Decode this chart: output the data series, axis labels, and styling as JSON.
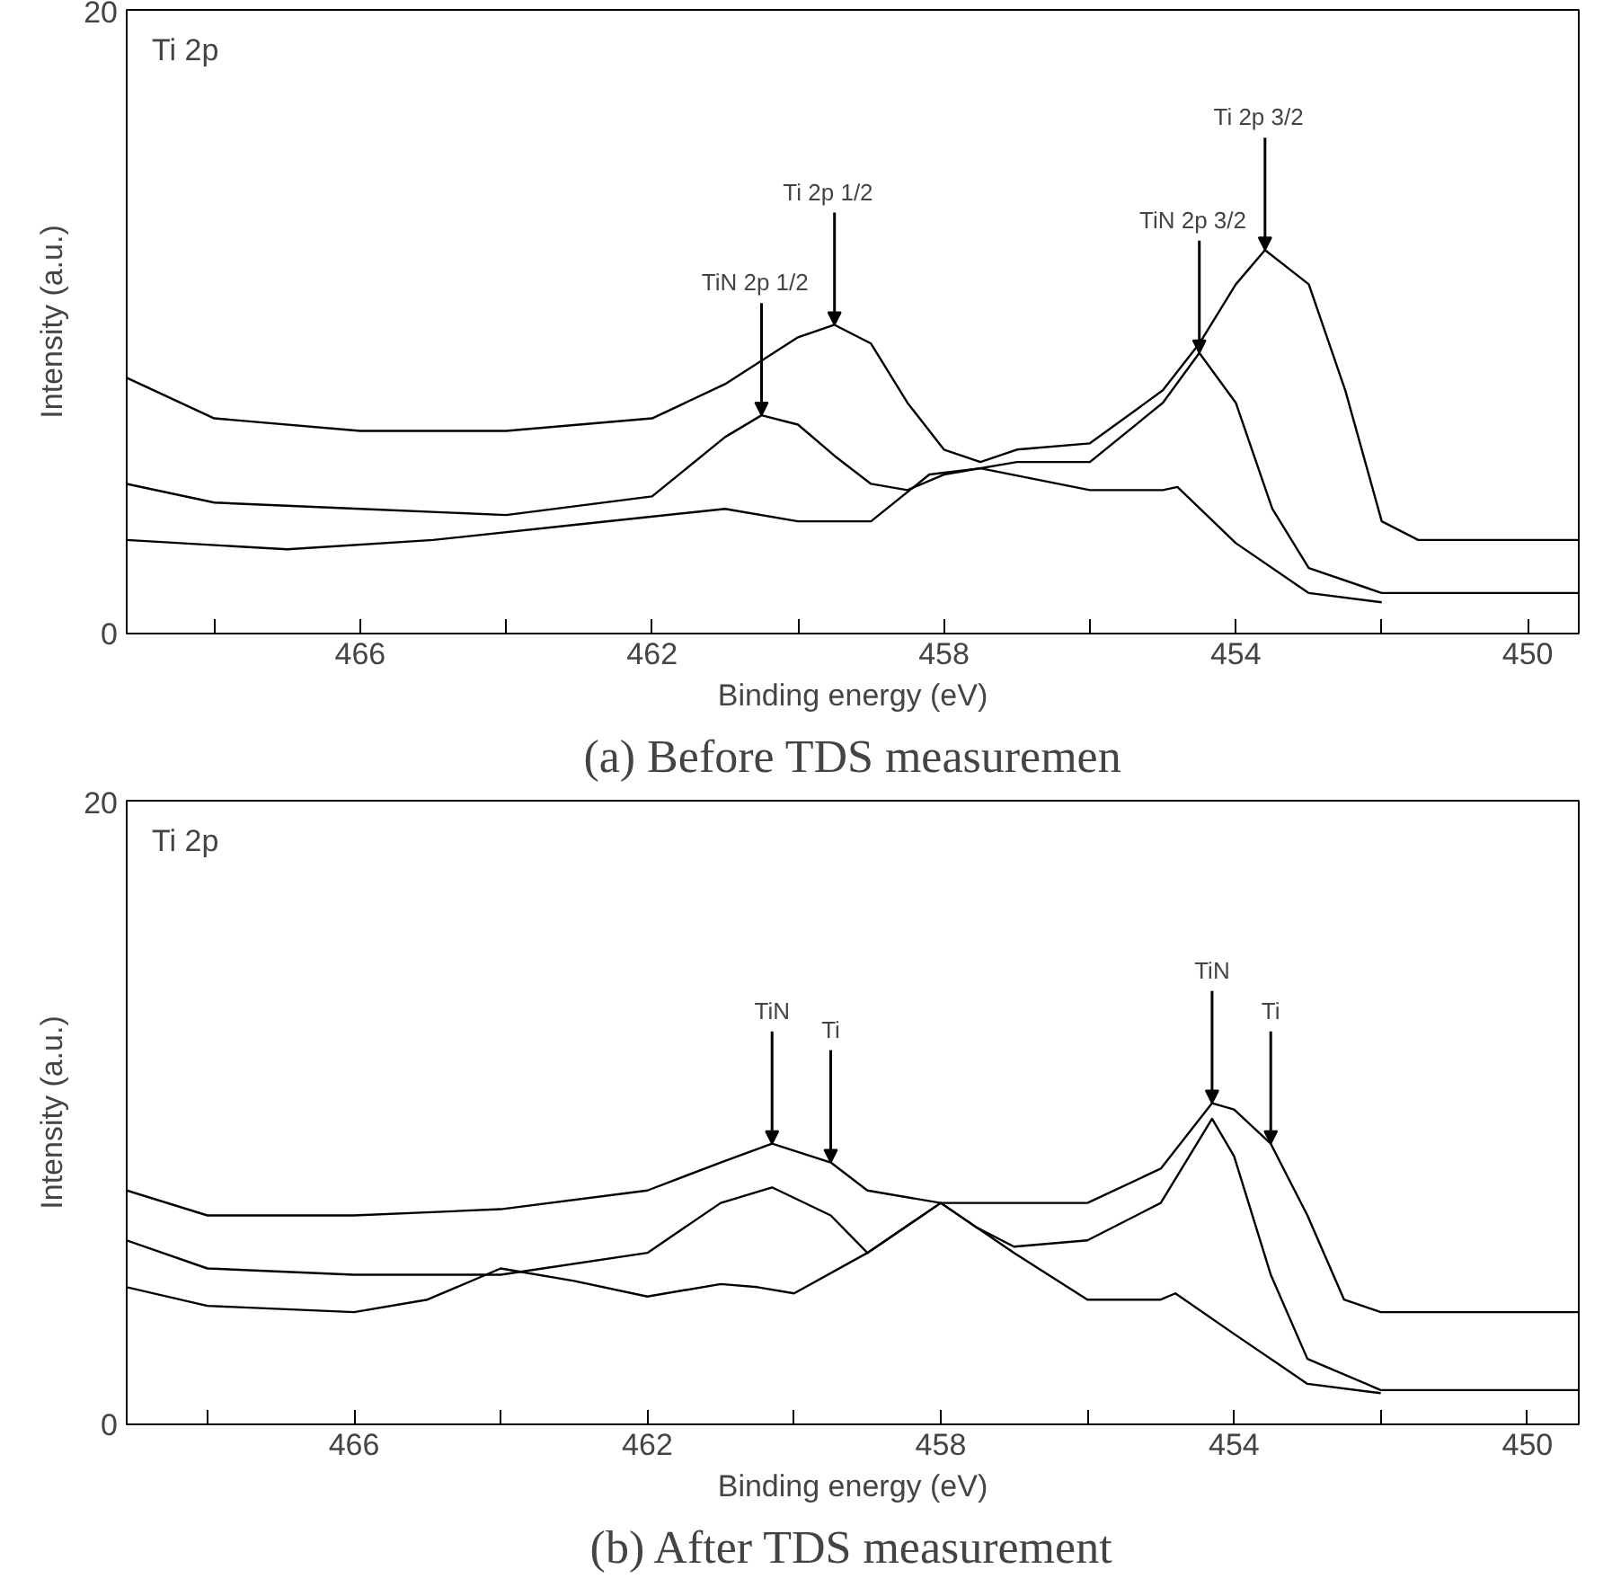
{
  "chart_data": [
    {
      "type": "line",
      "title": "(a) Before TDS measuremen",
      "xlabel": "Binding energy (eV)",
      "ylabel": "Intensity (a.u.)",
      "xlim": [
        469.2,
        449.3
      ],
      "ylim": [
        0,
        20
      ],
      "xticks": [
        {
          "value": 468,
          "label": null
        },
        466,
        {
          "value": 464,
          "label": null
        },
        462,
        {
          "value": 460,
          "label": null
        },
        458,
        {
          "value": 456,
          "label": null
        },
        454,
        {
          "value": 452,
          "label": null
        },
        450
      ],
      "yticks": [
        0,
        20
      ],
      "series": [
        {
          "color": "#000000",
          "x": [
            469.2,
            468,
            466,
            464,
            462,
            461,
            460,
            459.5,
            459,
            458.5,
            458,
            457.5,
            457,
            456,
            455,
            454.5,
            454,
            453.6,
            453,
            452.5,
            452,
            451.5,
            450,
            449.3
          ],
          "values": [
            8.2,
            6.9,
            6.5,
            6.5,
            6.9,
            8.0,
            9.5,
            9.9,
            9.3,
            7.4,
            5.9,
            5.5,
            5.9,
            6.1,
            7.8,
            9.3,
            11.2,
            12.3,
            11.2,
            7.8,
            3.6,
            3.0,
            3.0,
            3.0
          ]
        },
        {
          "color": "#000000",
          "x": [
            469.2,
            468,
            466,
            464,
            462,
            461,
            460.5,
            460,
            459.5,
            459,
            458.5,
            458,
            457,
            456,
            455,
            454.5,
            454,
            453.5,
            453,
            452,
            450,
            449.3
          ],
          "values": [
            4.8,
            4.2,
            4.0,
            3.8,
            4.4,
            6.3,
            7.0,
            6.7,
            5.7,
            4.8,
            4.6,
            5.1,
            5.5,
            5.5,
            7.4,
            9.0,
            7.4,
            4.0,
            2.1,
            1.3,
            1.3,
            1.3
          ]
        },
        {
          "color": "#000000",
          "x": [
            469.2,
            467,
            465,
            463,
            461,
            460,
            459,
            458.2,
            457.5,
            456,
            455,
            454.8,
            454,
            453,
            452
          ],
          "values": [
            3.0,
            2.7,
            3.0,
            3.5,
            4.0,
            3.6,
            3.6,
            5.1,
            5.3,
            4.6,
            4.6,
            4.7,
            2.9,
            1.3,
            1.0
          ]
        }
      ],
      "annotations": [
        "Ti   2p",
        {
          "text": "TiN   2p 1/2",
          "x": 460.5,
          "y": 7.0
        },
        {
          "text": "Ti   2p 1/2",
          "x": 459.5,
          "y": 9.9
        },
        {
          "text": "TiN   2p 3/2",
          "x": 454.5,
          "y": 9.0
        },
        {
          "text": "Ti   2p 3/2",
          "x": 453.6,
          "y": 12.3
        }
      ]
    },
    {
      "type": "line",
      "title": "(b) After TDS measurement",
      "xlabel": "Binding energy (eV)",
      "ylabel": "Intensity (a.u.)",
      "xlim": [
        469.1,
        449.3
      ],
      "ylim": [
        0,
        20
      ],
      "xticks": [
        {
          "value": 468,
          "label": null
        },
        466,
        {
          "value": 464,
          "label": null
        },
        462,
        {
          "value": 460,
          "label": null
        },
        458,
        {
          "value": 456,
          "label": null
        },
        454,
        {
          "value": 452,
          "label": null
        },
        450
      ],
      "yticks": [
        0,
        20
      ],
      "series": [
        {
          "color": "#000000",
          "x": [
            469.1,
            468,
            466,
            464,
            462,
            461,
            460.3,
            459.5,
            459,
            458,
            457,
            456,
            455,
            454.3,
            454,
            453.5,
            453,
            452.5,
            452,
            450,
            449.3
          ],
          "values": [
            7.5,
            6.7,
            6.7,
            6.9,
            7.5,
            8.4,
            9.0,
            8.4,
            7.5,
            7.1,
            7.1,
            7.1,
            8.2,
            10.3,
            10.1,
            9.0,
            6.7,
            4.0,
            3.6,
            3.6,
            3.6
          ]
        },
        {
          "color": "#000000",
          "x": [
            469.1,
            468,
            466,
            464,
            462,
            461,
            460.3,
            459.5,
            459,
            458.5,
            458,
            457.5,
            457,
            456,
            455,
            454.3,
            454,
            453.5,
            453,
            452,
            450,
            449.3
          ],
          "values": [
            5.9,
            5.0,
            4.8,
            4.8,
            5.5,
            7.1,
            7.6,
            6.7,
            5.5,
            6.3,
            7.1,
            6.3,
            5.7,
            5.9,
            7.1,
            9.8,
            8.6,
            4.8,
            2.1,
            1.1,
            1.1,
            1.1
          ]
        },
        {
          "color": "#000000",
          "x": [
            469.1,
            468,
            466,
            465,
            464,
            463,
            462,
            461,
            460.5,
            460,
            459,
            458,
            457,
            456,
            455,
            454.8,
            454,
            453,
            452
          ],
          "values": [
            4.4,
            3.8,
            3.6,
            4.0,
            5.0,
            4.6,
            4.1,
            4.5,
            4.4,
            4.2,
            5.5,
            7.1,
            5.5,
            4.0,
            4.0,
            4.2,
            2.9,
            1.3,
            1.0
          ]
        }
      ],
      "annotations": [
        "Ti   2p",
        {
          "text": "TiN",
          "x": 460.3,
          "y": 9.0
        },
        {
          "text": "Ti",
          "x": 459.5,
          "y": 8.4
        },
        {
          "text": "TiN",
          "x": 454.3,
          "y": 10.3
        },
        {
          "text": "Ti",
          "x": 453.5,
          "y": 9.0
        }
      ]
    }
  ]
}
